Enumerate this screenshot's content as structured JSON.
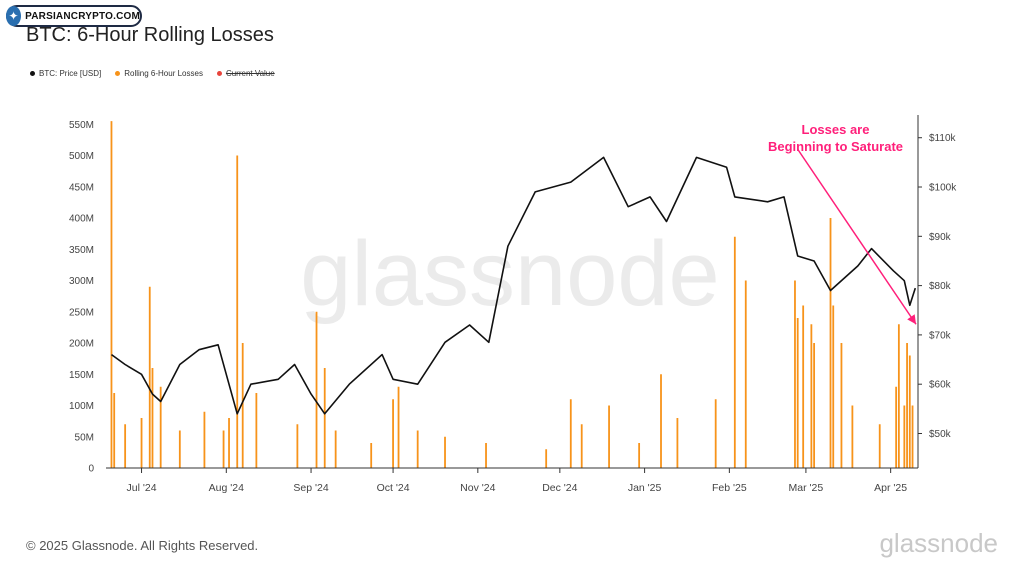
{
  "badge": {
    "text": "PARSIANCRYPTO.COM",
    "icon": "crypto-logo-icon"
  },
  "title": "BTC: 6-Hour Rolling Losses",
  "legend": [
    {
      "label": "BTC: Price [USD]",
      "color": "#111111",
      "strike": false
    },
    {
      "label": "Rolling 6-Hour Losses",
      "color": "#f7931a",
      "strike": false
    },
    {
      "label": "Current Value",
      "color": "#e8453c",
      "strike": true
    }
  ],
  "annotation": {
    "line1": "Losses are",
    "line2": "Beginning to Saturate",
    "color": "#ff1f7a"
  },
  "watermark": "glassnode",
  "footer": {
    "copyright": "© 2025 Glassnode. All Rights Reserved.",
    "logo": "glassnode"
  },
  "chart_data": {
    "type": "bar+line",
    "title": "BTC: 6-Hour Rolling Losses",
    "x_labels": [
      "Jul '24",
      "Aug '24",
      "Sep '24",
      "Oct '24",
      "Nov '24",
      "Dec '24",
      "Jan '25",
      "Feb '25",
      "Mar '25",
      "Apr '25"
    ],
    "left_axis": {
      "label": "Rolling 6-Hour Losses",
      "ticks": [
        "0",
        "50M",
        "100M",
        "150M",
        "200M",
        "250M",
        "300M",
        "350M",
        "400M",
        "450M",
        "500M",
        "550M"
      ],
      "range": [
        0,
        560000000
      ]
    },
    "right_axis": {
      "label": "BTC: Price [USD]",
      "ticks": [
        "$50k",
        "$60k",
        "$70k",
        "$80k",
        "$90k",
        "$100k",
        "$110k"
      ],
      "range": [
        43000,
        114000
      ]
    },
    "price_series": {
      "name": "BTC: Price [USD]",
      "color": "#111111",
      "x": [
        "2024-06-20",
        "2024-06-25",
        "2024-07-01",
        "2024-07-05",
        "2024-07-08",
        "2024-07-15",
        "2024-07-22",
        "2024-07-29",
        "2024-08-05",
        "2024-08-10",
        "2024-08-20",
        "2024-08-26",
        "2024-09-01",
        "2024-09-06",
        "2024-09-15",
        "2024-09-27",
        "2024-10-01",
        "2024-10-10",
        "2024-10-20",
        "2024-10-29",
        "2024-11-05",
        "2024-11-12",
        "2024-11-22",
        "2024-12-05",
        "2024-12-17",
        "2024-12-26",
        "2025-01-03",
        "2025-01-09",
        "2025-01-20",
        "2025-01-31",
        "2025-02-03",
        "2025-02-15",
        "2025-02-21",
        "2025-02-26",
        "2025-03-04",
        "2025-03-10",
        "2025-03-20",
        "2025-03-25",
        "2025-04-02",
        "2025-04-06",
        "2025-04-08",
        "2025-04-10"
      ],
      "values": [
        66000,
        64000,
        62000,
        58000,
        56500,
        64000,
        67000,
        68000,
        54000,
        60000,
        61000,
        64000,
        58000,
        54000,
        60000,
        66000,
        61000,
        60000,
        68500,
        72000,
        68500,
        88000,
        99000,
        101000,
        106000,
        96000,
        98000,
        93000,
        106000,
        104000,
        98000,
        97000,
        98000,
        86000,
        85000,
        79000,
        84000,
        87500,
        83000,
        81000,
        76000,
        79500
      ]
    },
    "loss_series": {
      "name": "Rolling 6-Hour Losses",
      "color": "#f7931a",
      "x": [
        "2024-06-20",
        "2024-06-21",
        "2024-06-25",
        "2024-07-01",
        "2024-07-04",
        "2024-07-05",
        "2024-07-08",
        "2024-07-15",
        "2024-07-24",
        "2024-07-31",
        "2024-08-02",
        "2024-08-05",
        "2024-08-07",
        "2024-08-12",
        "2024-08-27",
        "2024-09-03",
        "2024-09-06",
        "2024-09-10",
        "2024-09-23",
        "2024-10-01",
        "2024-10-03",
        "2024-10-10",
        "2024-10-20",
        "2024-11-04",
        "2024-11-26",
        "2024-12-05",
        "2024-12-09",
        "2024-12-19",
        "2024-12-30",
        "2025-01-07",
        "2025-01-13",
        "2025-01-27",
        "2025-02-03",
        "2025-02-07",
        "2025-02-25",
        "2025-02-26",
        "2025-02-28",
        "2025-03-03",
        "2025-03-04",
        "2025-03-10",
        "2025-03-11",
        "2025-03-14",
        "2025-03-18",
        "2025-03-28",
        "2025-04-03",
        "2025-04-04",
        "2025-04-06",
        "2025-04-07",
        "2025-04-08",
        "2025-04-09"
      ],
      "values": [
        555000000,
        120000000,
        70000000,
        80000000,
        290000000,
        160000000,
        130000000,
        60000000,
        90000000,
        60000000,
        80000000,
        500000000,
        200000000,
        120000000,
        70000000,
        250000000,
        160000000,
        60000000,
        40000000,
        110000000,
        130000000,
        60000000,
        50000000,
        40000000,
        30000000,
        110000000,
        70000000,
        100000000,
        40000000,
        150000000,
        80000000,
        110000000,
        370000000,
        300000000,
        300000000,
        240000000,
        260000000,
        230000000,
        200000000,
        400000000,
        260000000,
        200000000,
        100000000,
        70000000,
        130000000,
        230000000,
        100000000,
        200000000,
        180000000,
        100000000
      ]
    }
  }
}
